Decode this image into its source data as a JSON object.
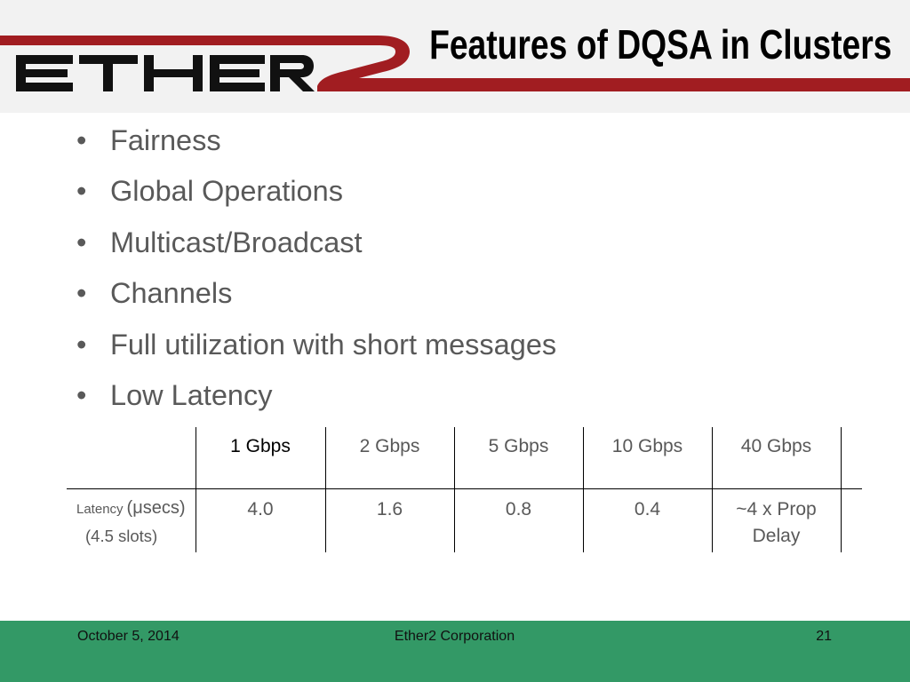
{
  "slide": {
    "title": "Features of DQSA in Clusters",
    "logo": {
      "text": "ETHER2"
    },
    "bullet_marker": "•",
    "bullets": [
      "Fairness",
      "Global Operations",
      "Multicast/Broadcast",
      "Channels",
      "Full utilization with short messages",
      "Low Latency"
    ],
    "table": {
      "headers": [
        "1 Gbps",
        "2 Gbps",
        "5 Gbps",
        "10 Gbps",
        "40 Gbps"
      ],
      "row_label": {
        "name": "Latency",
        "unit": "(μsecs)",
        "note": "(4.5 slots)"
      },
      "values": [
        "4.0",
        "1.6",
        "0.8",
        "0.4",
        "~4 x Prop Delay"
      ]
    },
    "footer": {
      "date": "October 5, 2014",
      "company": "Ether2 Corporation",
      "page_number": "21"
    }
  },
  "colors": {
    "header_background": "#f2f2f2",
    "brand_red": "#a11d21",
    "logo_black": "#111111",
    "body_text": "#595959",
    "footer_green": "#339966"
  }
}
